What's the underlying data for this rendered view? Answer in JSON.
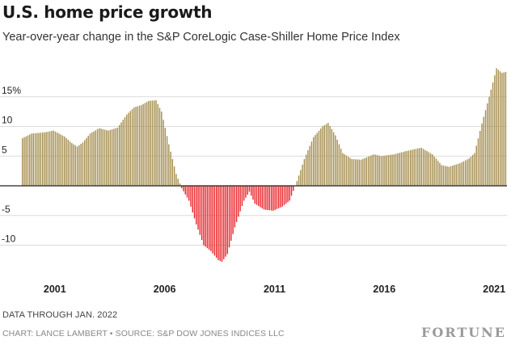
{
  "title": "U.S. home price growth",
  "subtitle": "Year-over-year change in the S&P CoreLogic Case-Shiller Home Price Index",
  "footer": {
    "data_through": "DATA THROUGH JAN. 2022",
    "credit": "CHART: LANCE LAMBERT • SOURCE: S&P DOW JONES INDICES LLC",
    "brand": "FORTUNE"
  },
  "colors": {
    "positive": "#a38c4c",
    "negative": "#e8242a",
    "gridline": "#dcdcdc",
    "zero_line": "#222222"
  },
  "chart_data": {
    "type": "bar",
    "start": "2000-01",
    "end": "2022-01",
    "frequency": "monthly",
    "y_tick_labels": [
      "15%",
      "10",
      "5",
      "-5",
      "-10"
    ],
    "y_ticks": [
      15,
      10,
      5,
      -5,
      -10
    ],
    "ylim": [
      -13,
      20
    ],
    "x_tick_labels": [
      "2001",
      "2006",
      "2011",
      "2016",
      "2021"
    ],
    "grid": true,
    "anchors": [
      [
        "2000-01",
        8.0
      ],
      [
        "2000-06",
        8.8
      ],
      [
        "2001-01",
        9.0
      ],
      [
        "2001-06",
        9.3
      ],
      [
        "2001-12",
        8.3
      ],
      [
        "2002-04",
        7.2
      ],
      [
        "2002-07",
        6.6
      ],
      [
        "2002-10",
        7.3
      ],
      [
        "2003-02",
        8.8
      ],
      [
        "2003-07",
        9.7
      ],
      [
        "2003-12",
        9.3
      ],
      [
        "2004-05",
        9.8
      ],
      [
        "2004-10",
        12.0
      ],
      [
        "2005-02",
        13.2
      ],
      [
        "2005-06",
        13.6
      ],
      [
        "2005-10",
        14.3
      ],
      [
        "2006-02",
        14.4
      ],
      [
        "2006-05",
        12.5
      ],
      [
        "2006-09",
        7.0
      ],
      [
        "2007-01",
        2.0
      ],
      [
        "2007-04",
        -0.4
      ],
      [
        "2007-08",
        -2.5
      ],
      [
        "2007-12",
        -6.5
      ],
      [
        "2008-04",
        -10.0
      ],
      [
        "2008-08",
        -11.0
      ],
      [
        "2008-12",
        -12.5
      ],
      [
        "2009-02",
        -12.8
      ],
      [
        "2009-05",
        -11.5
      ],
      [
        "2009-09",
        -7.0
      ],
      [
        "2010-02",
        -2.5
      ],
      [
        "2010-05",
        -1.0
      ],
      [
        "2010-08",
        -3.0
      ],
      [
        "2011-01",
        -4.0
      ],
      [
        "2011-06",
        -4.2
      ],
      [
        "2011-11",
        -3.5
      ],
      [
        "2012-03",
        -2.5
      ],
      [
        "2012-07",
        0.8
      ],
      [
        "2012-11",
        4.5
      ],
      [
        "2013-04",
        8.2
      ],
      [
        "2013-09",
        10.0
      ],
      [
        "2013-12",
        10.6
      ],
      [
        "2014-04",
        8.5
      ],
      [
        "2014-08",
        5.5
      ],
      [
        "2015-01",
        4.5
      ],
      [
        "2015-06",
        4.4
      ],
      [
        "2016-01",
        5.3
      ],
      [
        "2016-05",
        5.0
      ],
      [
        "2016-12",
        5.3
      ],
      [
        "2017-06",
        5.8
      ],
      [
        "2018-01",
        6.3
      ],
      [
        "2018-03",
        6.4
      ],
      [
        "2018-09",
        5.3
      ],
      [
        "2019-02",
        3.5
      ],
      [
        "2019-06",
        3.2
      ],
      [
        "2019-12",
        3.8
      ],
      [
        "2020-05",
        4.6
      ],
      [
        "2020-08",
        5.5
      ],
      [
        "2020-12",
        10.5
      ],
      [
        "2021-04",
        15.0
      ],
      [
        "2021-08",
        19.8
      ],
      [
        "2021-11",
        19.0
      ],
      [
        "2022-01",
        19.2
      ]
    ]
  }
}
